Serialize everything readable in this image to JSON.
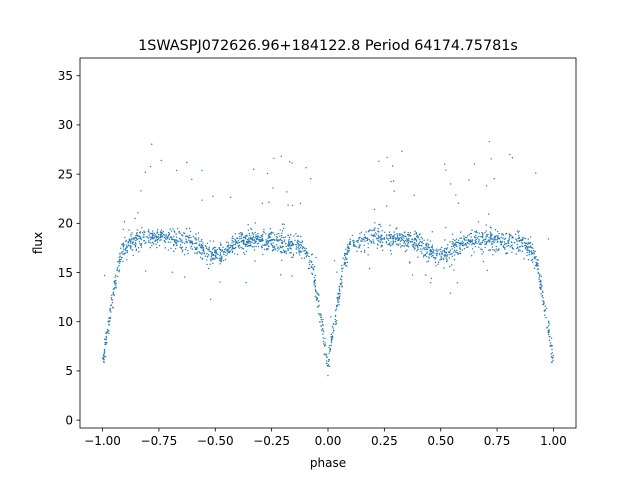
{
  "chart_data": {
    "type": "scatter",
    "title": "1SWASPJ072626.96+184122.8 Period 64174.75781s",
    "xlabel": "phase",
    "ylabel": "flux",
    "xlim": [
      -1.1,
      1.1
    ],
    "ylim": [
      -0.8,
      36.8
    ],
    "xticks": [
      -1.0,
      -0.75,
      -0.5,
      -0.25,
      0.0,
      0.25,
      0.5,
      0.75,
      1.0
    ],
    "xtick_labels": [
      "−1.00",
      "−0.75",
      "−0.50",
      "−0.25",
      "0.00",
      "0.25",
      "0.50",
      "0.75",
      "1.00"
    ],
    "yticks": [
      0,
      5,
      10,
      15,
      20,
      25,
      30,
      35
    ],
    "ytick_labels": [
      "0",
      "5",
      "10",
      "15",
      "20",
      "25",
      "30",
      "35"
    ],
    "grid": false,
    "legend": "none",
    "marker_color": "#1f77b4",
    "series": [
      {
        "light_curve": [
          {
            "phase": -1.0,
            "flux": 5.8
          },
          {
            "phase": -0.975,
            "flux": 9.5
          },
          {
            "phase": -0.95,
            "flux": 13.0
          },
          {
            "phase": -0.93,
            "flux": 15.8
          },
          {
            "phase": -0.91,
            "flux": 17.3
          },
          {
            "phase": -0.88,
            "flux": 18.0
          },
          {
            "phase": -0.8,
            "flux": 18.5
          },
          {
            "phase": -0.7,
            "flux": 18.5
          },
          {
            "phase": -0.6,
            "flux": 18.0
          },
          {
            "phase": -0.55,
            "flux": 17.2
          },
          {
            "phase": -0.5,
            "flux": 16.6
          },
          {
            "phase": -0.45,
            "flux": 17.2
          },
          {
            "phase": -0.4,
            "flux": 18.0
          },
          {
            "phase": -0.3,
            "flux": 18.3
          },
          {
            "phase": -0.2,
            "flux": 18.1
          },
          {
            "phase": -0.12,
            "flux": 17.6
          },
          {
            "phase": -0.09,
            "flux": 17.0
          },
          {
            "phase": -0.07,
            "flux": 15.5
          },
          {
            "phase": -0.05,
            "flux": 13.0
          },
          {
            "phase": -0.025,
            "flux": 9.5
          },
          {
            "phase": 0.0,
            "flux": 5.6
          },
          {
            "phase": 0.025,
            "flux": 9.5
          },
          {
            "phase": 0.05,
            "flux": 13.0
          },
          {
            "phase": 0.07,
            "flux": 15.8
          },
          {
            "phase": 0.09,
            "flux": 17.3
          },
          {
            "phase": 0.12,
            "flux": 18.0
          },
          {
            "phase": 0.2,
            "flux": 18.5
          },
          {
            "phase": 0.3,
            "flux": 18.5
          },
          {
            "phase": 0.4,
            "flux": 18.0
          },
          {
            "phase": 0.45,
            "flux": 17.2
          },
          {
            "phase": 0.5,
            "flux": 16.6
          },
          {
            "phase": 0.55,
            "flux": 17.2
          },
          {
            "phase": 0.6,
            "flux": 18.0
          },
          {
            "phase": 0.7,
            "flux": 18.3
          },
          {
            "phase": 0.8,
            "flux": 18.1
          },
          {
            "phase": 0.88,
            "flux": 17.6
          },
          {
            "phase": 0.91,
            "flux": 17.0
          },
          {
            "phase": 0.93,
            "flux": 15.5
          },
          {
            "phase": 0.95,
            "flux": 13.0
          },
          {
            "phase": 0.975,
            "flux": 9.5
          },
          {
            "phase": 1.0,
            "flux": 5.8
          }
        ]
      }
    ]
  }
}
